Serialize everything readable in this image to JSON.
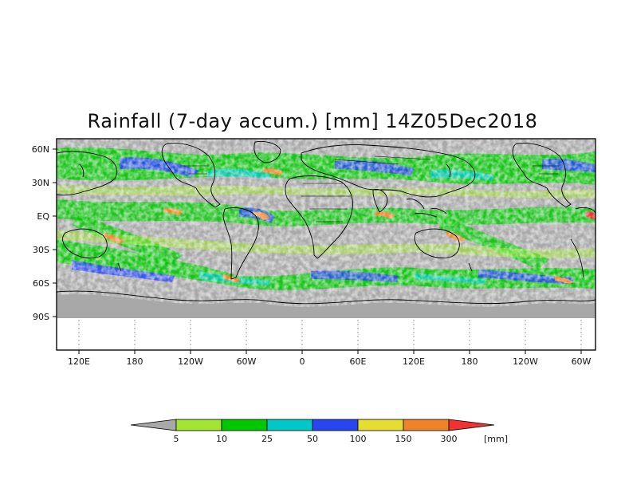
{
  "title": "Rainfall (7-day accum.) [mm] 14Z05Dec2018",
  "lat_ticks": [
    "60N",
    "30N",
    "EQ",
    "30S",
    "60S",
    "90S"
  ],
  "lon_ticks": [
    "120E",
    "180",
    "120W",
    "60W",
    "0",
    "60E",
    "120E",
    "180",
    "120W",
    "60W"
  ],
  "legend": {
    "thresholds": [
      "5",
      "10",
      "25",
      "50",
      "100",
      "150",
      "300"
    ],
    "unit": "[mm]",
    "colors": {
      "below": "#a8a8a8",
      "5-10": "#a0e632",
      "10-25": "#00c800",
      "25-50": "#00c8c8",
      "50-100": "#2846f0",
      "100-150": "#e6dc32",
      "150-300": "#f08228",
      "above": "#f03232"
    }
  },
  "colors": {
    "no_rain": "#a8a8a8",
    "no_data": "#ffffff",
    "coast": "#000000"
  }
}
